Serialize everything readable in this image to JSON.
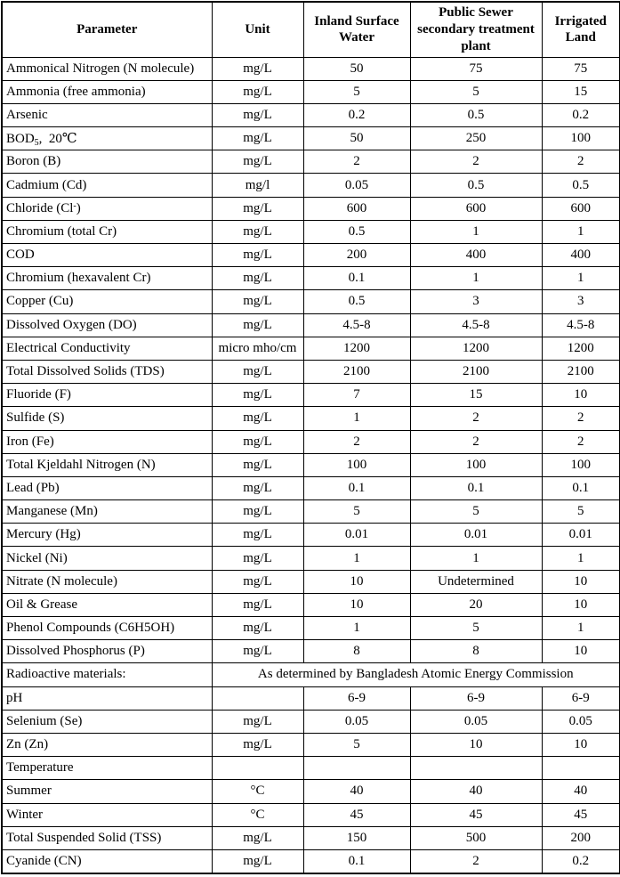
{
  "table": {
    "columns": [
      "Parameter",
      "Unit",
      "Inland Surface Water",
      "Public Sewer secondary treatment plant",
      "Irrigated Land"
    ],
    "rows": [
      {
        "parameter": "Ammonical Nitrogen (N molecule)",
        "unit": "mg/L",
        "values": [
          "50",
          "75",
          "75"
        ]
      },
      {
        "parameter": "Ammonia (free ammonia)",
        "unit": "mg/L",
        "values": [
          "5",
          "5",
          "15"
        ]
      },
      {
        "parameter": "Arsenic",
        "unit": "mg/L",
        "values": [
          "0.2",
          "0.5",
          "0.2"
        ]
      },
      {
        "parameter": "BOD~5~,  20℃",
        "unit": "mg/L",
        "values": [
          "50",
          "250",
          "100"
        ]
      },
      {
        "parameter": "Boron (B)",
        "unit": "mg/L",
        "values": [
          "2",
          "2",
          "2"
        ]
      },
      {
        "parameter": "Cadmium (Cd)",
        "unit": "mg/l",
        "values": [
          "0.05",
          "0.5",
          "0.5"
        ]
      },
      {
        "parameter": "Chloride (Cl^-^)",
        "unit": "mg/L",
        "values": [
          "600",
          "600",
          "600"
        ]
      },
      {
        "parameter": "Chromium (total Cr)",
        "unit": "mg/L",
        "values": [
          "0.5",
          "1",
          "1"
        ]
      },
      {
        "parameter": "COD",
        "unit": "mg/L",
        "values": [
          "200",
          "400",
          "400"
        ]
      },
      {
        "parameter": "Chromium (hexavalent Cr)",
        "unit": "mg/L",
        "values": [
          "0.1",
          "1",
          "1"
        ]
      },
      {
        "parameter": "Copper (Cu)",
        "unit": "mg/L",
        "values": [
          "0.5",
          "3",
          "3"
        ]
      },
      {
        "parameter": "Dissolved Oxygen (DO)",
        "unit": "mg/L",
        "values": [
          "4.5-8",
          "4.5-8",
          "4.5-8"
        ]
      },
      {
        "parameter": "Electrical Conductivity",
        "unit": "micro mho/cm",
        "values": [
          "1200",
          "1200",
          "1200"
        ]
      },
      {
        "parameter": "Total Dissolved Solids (TDS)",
        "unit": "mg/L",
        "values": [
          "2100",
          "2100",
          "2100"
        ]
      },
      {
        "parameter": "Fluoride (F)",
        "unit": "mg/L",
        "values": [
          "7",
          "15",
          "10"
        ]
      },
      {
        "parameter": "Sulfide (S)",
        "unit": "mg/L",
        "values": [
          "1",
          "2",
          "2"
        ]
      },
      {
        "parameter": "Iron (Fe)",
        "unit": "mg/L",
        "values": [
          "2",
          "2",
          "2"
        ]
      },
      {
        "parameter": "Total Kjeldahl Nitrogen (N)",
        "unit": "mg/L",
        "values": [
          "100",
          "100",
          "100"
        ]
      },
      {
        "parameter": "Lead (Pb)",
        "unit": "mg/L",
        "values": [
          "0.1",
          "0.1",
          "0.1"
        ]
      },
      {
        "parameter": "Manganese (Mn)",
        "unit": "mg/L",
        "values": [
          "5",
          "5",
          "5"
        ]
      },
      {
        "parameter": "Mercury (Hg)",
        "unit": "mg/L",
        "values": [
          "0.01",
          "0.01",
          "0.01"
        ]
      },
      {
        "parameter": "Nickel (Ni)",
        "unit": "mg/L",
        "values": [
          "1",
          "1",
          "1"
        ]
      },
      {
        "parameter": "Nitrate (N molecule)",
        "unit": "mg/L",
        "values": [
          "10",
          "Undetermined",
          "10"
        ]
      },
      {
        "parameter": "Oil & Grease",
        "unit": "mg/L",
        "values": [
          "10",
          "20",
          "10"
        ]
      },
      {
        "parameter": "Phenol Compounds (C6H5OH)",
        "unit": "mg/L",
        "values": [
          "1",
          "5",
          "1"
        ]
      },
      {
        "parameter": "Dissolved Phosphorus (P)",
        "unit": "mg/L",
        "values": [
          "8",
          "8",
          "10"
        ]
      },
      {
        "parameter": "Radioactive materials:",
        "span": "As determined by Bangladesh Atomic Energy Commission"
      },
      {
        "parameter": "pH",
        "unit": "",
        "values": [
          "6-9",
          "6-9",
          "6-9"
        ]
      },
      {
        "parameter": "Selenium (Se)",
        "unit": "mg/L",
        "values": [
          "0.05",
          "0.05",
          "0.05"
        ]
      },
      {
        "parameter": "Zn (Zn)",
        "unit": "mg/L",
        "values": [
          "5",
          "10",
          "10"
        ]
      },
      {
        "parameter": "Temperature",
        "unit": "",
        "values": [
          "",
          "",
          ""
        ]
      },
      {
        "parameter": "Summer",
        "unit": "°C",
        "values": [
          "40",
          "40",
          "40"
        ]
      },
      {
        "parameter": "Winter",
        "unit": "°C",
        "values": [
          "45",
          "45",
          "45"
        ]
      },
      {
        "parameter": "Total Suspended Solid (TSS)",
        "unit": "mg/L",
        "values": [
          "150",
          "500",
          "200"
        ]
      },
      {
        "parameter": "Cyanide (CN)",
        "unit": "mg/L",
        "values": [
          "0.1",
          "2",
          "0.2"
        ]
      }
    ],
    "colors": {
      "text": "#000000",
      "border": "#000000",
      "background": "#ffffff"
    }
  }
}
